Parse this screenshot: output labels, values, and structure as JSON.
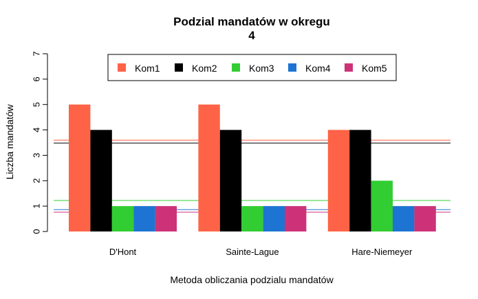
{
  "chart_data": {
    "type": "bar",
    "title_line1": "Podzial mandatów w okregu",
    "title_line2": "4",
    "xlabel": "Metoda obliczania podzialu mandatów",
    "ylabel": "Liczba mandatów",
    "ylim": [
      0,
      7
    ],
    "yticks": [
      "0",
      "1",
      "2",
      "3",
      "4",
      "5",
      "6",
      "7"
    ],
    "categories": [
      "D'Hont",
      "Sainte-Lague",
      "Hare-Niemeyer"
    ],
    "series": [
      {
        "name": "Kom1",
        "color": "#ff6347",
        "values": [
          5,
          5,
          4
        ]
      },
      {
        "name": "Kom2",
        "color": "#000000",
        "values": [
          4,
          4,
          4
        ]
      },
      {
        "name": "Kom3",
        "color": "#32cd32",
        "values": [
          1,
          1,
          2
        ]
      },
      {
        "name": "Kom4",
        "color": "#1e74d2",
        "values": [
          1,
          1,
          1
        ]
      },
      {
        "name": "Kom5",
        "color": "#cd3278",
        "values": [
          1,
          1,
          1
        ]
      }
    ],
    "reference_lines": [
      {
        "series": "Kom1",
        "color": "#ff6347",
        "value": 3.6
      },
      {
        "series": "Kom2",
        "color": "#000000",
        "value": 3.48
      },
      {
        "series": "Kom3",
        "color": "#32cd32",
        "value": 1.22
      },
      {
        "series": "Kom4",
        "color": "#1e74d2",
        "value": 0.86
      },
      {
        "series": "Kom5",
        "color": "#cd3278",
        "value": 0.76
      }
    ],
    "legend_position": "top",
    "grid": false
  }
}
